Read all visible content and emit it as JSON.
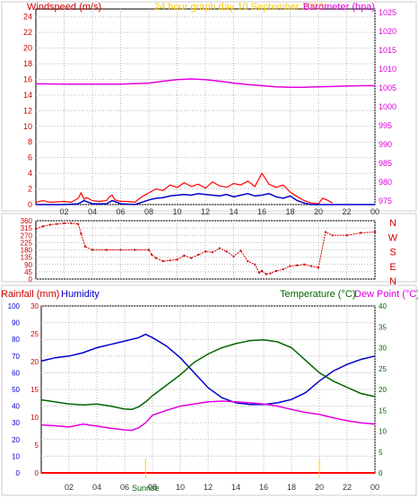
{
  "header": {
    "left_title": "Windspeed (m/s)",
    "center_title": "24 hour graph day   10 September 2023",
    "right_title": "Barometer (hpa)"
  },
  "bottom_header": {
    "rainfall_label": "Rainfall (mm)",
    "humidity_label": "Humidity",
    "temperature_label": "Temperature (°C)",
    "dewpoint_label": "Dew Point (°C)"
  },
  "sunrise_label": "Sunrise",
  "colors": {
    "wind_gust": "#ff0000",
    "wind_avg": "#0000cc",
    "barometer": "#e000e0",
    "direction": "#cc0000",
    "humidity": "#0000cc",
    "temperature": "#006600",
    "dewpoint": "#e000e0",
    "rain": "#ff0000",
    "title": "#ffcc00",
    "grid": "#bbbbbb"
  },
  "chart_data": [
    {
      "type": "line",
      "name": "wind_and_barometer",
      "x_ticks": [
        "02",
        "04",
        "06",
        "08",
        "10",
        "12",
        "14",
        "16",
        "18",
        "20",
        "22",
        "00"
      ],
      "x_range": [
        0,
        24
      ],
      "left_axis": {
        "ticks": [
          0,
          2,
          4,
          6,
          8,
          10,
          12,
          14,
          16,
          18,
          20,
          22,
          24
        ],
        "range": [
          0,
          25
        ]
      },
      "right_axis": {
        "ticks": [
          975,
          980,
          985,
          990,
          995,
          1000,
          1005,
          1010,
          1015,
          1020,
          1025
        ],
        "range": [
          974,
          1026
        ]
      },
      "series": [
        {
          "role": "barometer",
          "x": [
            0,
            2,
            4,
            6,
            8,
            9,
            10,
            11,
            12,
            13,
            14,
            15,
            16,
            17,
            18,
            19,
            20,
            21,
            22,
            23,
            24
          ],
          "y": [
            1006.1,
            1006.0,
            1006.0,
            1006.0,
            1006.3,
            1006.8,
            1007.2,
            1007.4,
            1007.2,
            1006.8,
            1006.3,
            1005.9,
            1005.6,
            1005.3,
            1005.2,
            1005.2,
            1005.3,
            1005.4,
            1005.5,
            1005.6,
            1005.6
          ]
        },
        {
          "role": "gust",
          "x": [
            0,
            0.5,
            1,
            2,
            2.5,
            3,
            3.2,
            3.4,
            3.6,
            4,
            4.5,
            5,
            5.2,
            5.4,
            5.6,
            6,
            6.5,
            7,
            7.5,
            8,
            8.5,
            9,
            9.5,
            10,
            10.5,
            11,
            11.5,
            12,
            12.5,
            13,
            13.5,
            14,
            14.5,
            15,
            15.5,
            16,
            16.5,
            17,
            17.5,
            18,
            18.5,
            19,
            19.5,
            20,
            20.3,
            20.6,
            21
          ],
          "y": [
            0.3,
            0.5,
            0.3,
            0.4,
            0.3,
            0.8,
            1.5,
            0.7,
            0.9,
            0.5,
            0.4,
            0.5,
            1.0,
            1.2,
            0.6,
            0.4,
            0.4,
            0.3,
            1.0,
            1.5,
            2.0,
            1.8,
            2.5,
            2.2,
            2.8,
            2.3,
            2.6,
            2.1,
            2.9,
            2.4,
            2.2,
            2.7,
            2.5,
            3.0,
            2.3,
            4.0,
            2.6,
            2.2,
            2.5,
            1.6,
            1.0,
            0.5,
            0.2,
            0.1,
            0.8,
            0.6,
            0.2
          ]
        },
        {
          "role": "average",
          "x": [
            0,
            2,
            3,
            3.4,
            4,
            5,
            5.4,
            6,
            7,
            7.5,
            8,
            8.5,
            9,
            9.5,
            10,
            10.5,
            11,
            11.5,
            12,
            12.5,
            13,
            13.5,
            14,
            14.5,
            15,
            15.5,
            16,
            16.5,
            17,
            17.5,
            18,
            18.5,
            19,
            19.5,
            20,
            21,
            24
          ],
          "y": [
            0,
            0,
            0.1,
            0.5,
            0.1,
            0.1,
            0.5,
            0.1,
            0,
            0.3,
            0.6,
            0.8,
            0.9,
            1.1,
            1.2,
            1.3,
            1.2,
            1.4,
            1.3,
            1.2,
            1.1,
            1.3,
            1.0,
            1.2,
            1.4,
            1.1,
            1.2,
            1.4,
            1.0,
            0.8,
            1.1,
            0.5,
            0.2,
            0,
            0,
            0,
            0
          ]
        }
      ]
    },
    {
      "type": "scatter",
      "name": "wind_direction",
      "x_range": [
        0,
        24
      ],
      "left_axis": {
        "ticks": [
          0,
          45,
          90,
          135,
          180,
          225,
          270,
          315,
          360
        ],
        "range": [
          0,
          360
        ]
      },
      "right_labels": [
        "N",
        "W",
        "S",
        "E",
        "N"
      ],
      "series": [
        {
          "role": "direction",
          "x": [
            0,
            0.5,
            1,
            1.5,
            2,
            2.5,
            3,
            3.2,
            3.5,
            4,
            5,
            6,
            7,
            8,
            8.2,
            8.5,
            9,
            9.5,
            10,
            10.5,
            11,
            11.5,
            12,
            12.5,
            13,
            13.5,
            14,
            14.5,
            15,
            15.5,
            15.8,
            16,
            16.3,
            16.6,
            17,
            17.5,
            18,
            18.5,
            19,
            19.5,
            20,
            20.5,
            21,
            22,
            23,
            24
          ],
          "y": [
            310,
            325,
            335,
            340,
            345,
            345,
            340,
            280,
            200,
            180,
            180,
            180,
            180,
            180,
            150,
            130,
            110,
            115,
            120,
            145,
            130,
            150,
            170,
            165,
            190,
            170,
            140,
            175,
            110,
            90,
            40,
            50,
            30,
            35,
            50,
            60,
            80,
            85,
            90,
            80,
            70,
            290,
            270,
            270,
            285,
            290
          ]
        }
      ]
    },
    {
      "type": "line",
      "name": "temperature_humidity_rain",
      "x_ticks": [
        "02",
        "04",
        "06",
        "08",
        "10",
        "12",
        "14",
        "16",
        "18",
        "20",
        "22",
        "00"
      ],
      "x_range": [
        0,
        24
      ],
      "rain_axis": {
        "ticks": [
          0,
          5,
          10,
          15,
          20,
          25,
          30
        ],
        "range": [
          0,
          30
        ]
      },
      "humidity_axis": {
        "ticks": [
          0,
          10,
          20,
          30,
          40,
          50,
          60,
          70,
          80,
          90,
          100
        ],
        "range": [
          0,
          100
        ]
      },
      "temperature_axis": {
        "ticks": [
          0,
          5,
          10,
          15,
          20,
          25,
          30,
          35,
          40
        ],
        "range": [
          0,
          40
        ]
      },
      "markers": [
        {
          "x": 7.5,
          "label": "Sunrise"
        },
        {
          "x": 20,
          "label": ""
        }
      ],
      "series": [
        {
          "role": "humidity",
          "x": [
            0,
            1,
            2,
            3,
            4,
            5,
            6,
            6.5,
            7,
            7.5,
            8,
            9,
            10,
            11,
            12,
            13,
            14,
            15,
            16,
            17,
            18,
            19,
            20,
            21,
            22,
            23,
            24
          ],
          "y": [
            67,
            69,
            70,
            72,
            75,
            77,
            79,
            80,
            81,
            83,
            81,
            76,
            69,
            60,
            51,
            45,
            42,
            41,
            41,
            42,
            44,
            48,
            55,
            61,
            65,
            68,
            70
          ]
        },
        {
          "role": "temperature",
          "x": [
            0,
            1,
            2,
            3,
            4,
            5,
            6,
            6.5,
            7,
            7.5,
            8,
            9,
            10,
            11,
            12,
            13,
            14,
            15,
            16,
            17,
            18,
            19,
            20,
            21,
            22,
            23,
            24
          ],
          "y": [
            17.5,
            17,
            16.5,
            16.3,
            16.5,
            16,
            15.3,
            15.2,
            15.8,
            17,
            18.5,
            21,
            23.5,
            26.5,
            28.5,
            30,
            31,
            31.7,
            31.9,
            31.4,
            30,
            27,
            24,
            22,
            20.5,
            19,
            18.3
          ]
        },
        {
          "role": "dewpoint",
          "x": [
            0,
            1,
            2,
            3,
            4,
            5,
            6,
            6.5,
            7,
            7.5,
            8,
            9,
            10,
            11,
            12,
            13,
            14,
            15,
            16,
            17,
            18,
            19,
            20,
            21,
            22,
            23,
            24
          ],
          "y": [
            11.5,
            11.3,
            11,
            11.7,
            11.2,
            10.7,
            10.3,
            10.2,
            10.8,
            12,
            13.8,
            15,
            16,
            16.5,
            17,
            17.2,
            17,
            16.8,
            16.5,
            16,
            15.2,
            14.5,
            14,
            13.2,
            12.5,
            12,
            11.7
          ]
        },
        {
          "role": "rainfall",
          "x": [
            0,
            24
          ],
          "y": [
            0,
            0
          ]
        }
      ]
    }
  ]
}
